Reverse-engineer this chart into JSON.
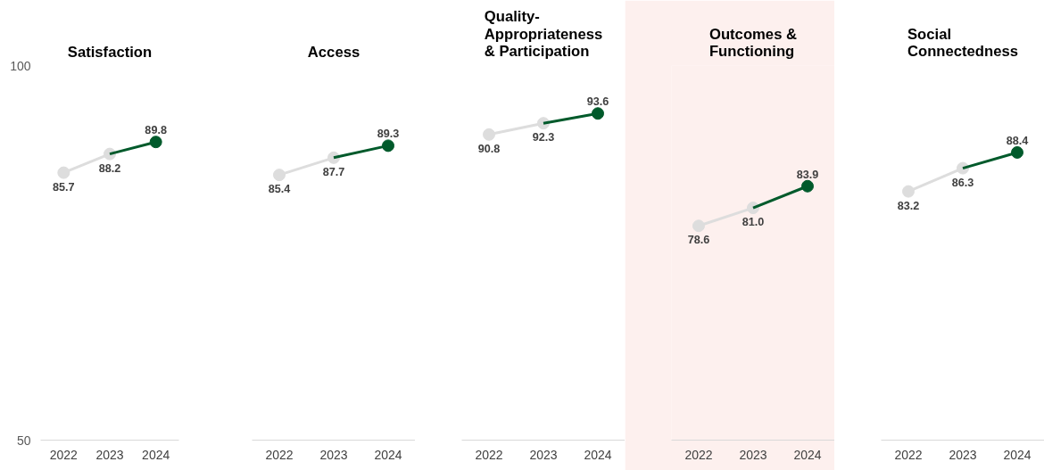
{
  "chart_data": [
    {
      "type": "line",
      "title": "Satisfaction",
      "categories": [
        "2022",
        "2023",
        "2024"
      ],
      "ylim": [
        50,
        100
      ],
      "yticks": [
        50,
        100
      ],
      "marker": "circle",
      "grid": false,
      "series": [
        {
          "color": "#dddddd",
          "values": [
            85.7,
            88.2,
            null
          ],
          "value_labels": [
            "85.7",
            "88.2",
            null
          ]
        },
        {
          "color": "#005a2b",
          "values": [
            null,
            88.2,
            89.8
          ],
          "colors": [
            null,
            null,
            "#005a2b"
          ],
          "value_labels": [
            null,
            null,
            "89.8"
          ]
        }
      ]
    },
    {
      "type": "line",
      "title": "Access",
      "categories": [
        "2022",
        "2023",
        "2024"
      ],
      "ylim": [
        50,
        100
      ],
      "yticks": [
        50,
        100
      ],
      "marker": "circle",
      "grid": false,
      "tick_labels": "x",
      "series": [
        {
          "color": "#dddddd",
          "values": [
            85.4,
            87.7,
            null
          ],
          "value_labels": [
            "85.4",
            "87.7",
            null
          ]
        },
        {
          "color": "#005a2b",
          "values": [
            null,
            87.7,
            89.3
          ],
          "colors": [
            null,
            null,
            "#005a2b"
          ],
          "value_labels": [
            null,
            null,
            "89.3"
          ]
        }
      ]
    },
    {
      "type": "line",
      "title": "Quality-\nAppropriateness\n& Participation",
      "categories": [
        "2022",
        "2023",
        "2024"
      ],
      "ylim": [
        50,
        100
      ],
      "yticks": [
        50,
        100
      ],
      "marker": "circle",
      "grid": false,
      "tick_labels": "x",
      "series": [
        {
          "color": "#dddddd",
          "values": [
            90.8,
            92.3,
            null
          ],
          "value_labels": [
            "90.8",
            "92.3",
            null
          ]
        },
        {
          "color": "#005a2b",
          "values": [
            null,
            92.3,
            93.6
          ],
          "colors": [
            null,
            null,
            "#005a2b"
          ],
          "value_labels": [
            null,
            null,
            "93.6"
          ]
        }
      ]
    },
    {
      "type": "line",
      "title": "Outcomes &\nFunctioning",
      "categories": [
        "2022",
        "2023",
        "2024"
      ],
      "ylim": [
        50,
        100
      ],
      "yticks": [
        50,
        100
      ],
      "marker": "circle",
      "grid": false,
      "tick_labels": "x",
      "bands": [
        {
          "axis": "y",
          "from": 50,
          "to": 100,
          "color": "#fdf0ee"
        }
      ],
      "series": [
        {
          "color": "#dddddd",
          "values": [
            78.6,
            81.0,
            null
          ],
          "value_labels": [
            "78.6",
            "81.0",
            null
          ]
        },
        {
          "color": "#005a2b",
          "values": [
            null,
            81.0,
            83.9
          ],
          "colors": [
            null,
            null,
            "#005a2b"
          ],
          "value_labels": [
            null,
            null,
            "83.9"
          ]
        }
      ]
    },
    {
      "type": "line",
      "title": "Social\nConnectedness",
      "categories": [
        "2022",
        "2023",
        "2024"
      ],
      "ylim": [
        50,
        100
      ],
      "yticks": [
        50,
        100
      ],
      "marker": "circle",
      "grid": false,
      "tick_labels": "x",
      "series": [
        {
          "color": "#dddddd",
          "values": [
            83.2,
            86.3,
            null
          ],
          "value_labels": [
            "83.2",
            "86.3",
            null
          ]
        },
        {
          "color": "#005a2b",
          "values": [
            null,
            86.3,
            88.4
          ],
          "colors": [
            null,
            null,
            "#005a2b"
          ],
          "value_labels": [
            null,
            null,
            "88.4"
          ]
        }
      ]
    }
  ]
}
